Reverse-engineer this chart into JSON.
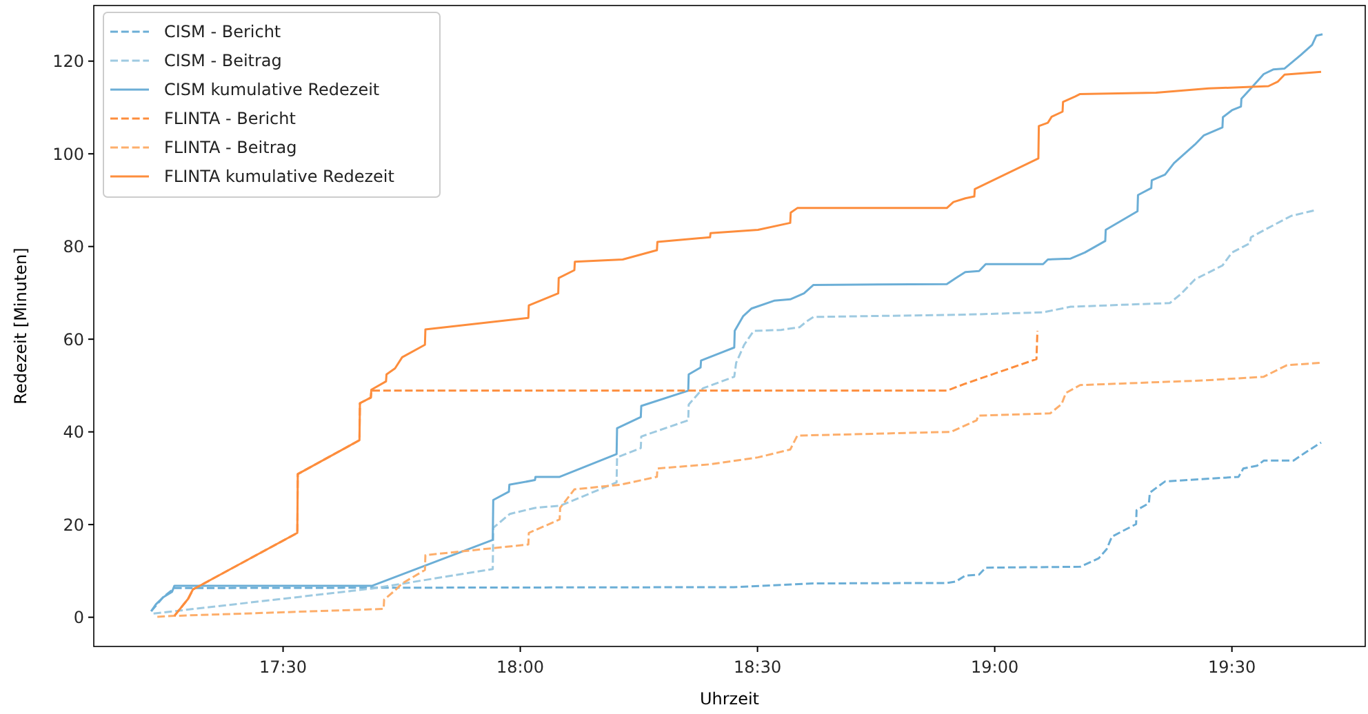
{
  "chart_data": {
    "type": "line",
    "xlabel": "Uhrzeit",
    "ylabel": "Redezeit [Minuten]",
    "xlim": [
      17.101,
      19.781
    ],
    "ylim": [
      -6.3,
      132
    ],
    "xticks": [
      {
        "value": 17.5,
        "label": "17:30"
      },
      {
        "value": 18,
        "label": "18:00"
      },
      {
        "value": 18.5,
        "label": "18:30"
      },
      {
        "value": 19,
        "label": "19:00"
      },
      {
        "value": 19.5,
        "label": "19:30"
      }
    ],
    "yticks": [
      0,
      20,
      40,
      60,
      80,
      100,
      120
    ],
    "grid": false,
    "legend": "top left",
    "marker": "none",
    "series": [
      {
        "name": "CISM - Bericht",
        "color": "#6baed6",
        "line_style": "dashed",
        "x": [
          17.222,
          17.247,
          17.271,
          18.45,
          18.618,
          18.899,
          18.918,
          18.938,
          18.967,
          18.981,
          19.18,
          19.219,
          19.236,
          19.247,
          19.298,
          19.299,
          19.325,
          19.327,
          19.359,
          19.514,
          19.524,
          19.553,
          19.567,
          19.63,
          19.654,
          19.688
        ],
        "values": [
          1.3,
          4.3,
          6.3,
          6.5,
          7.3,
          7.4,
          7.7,
          9.0,
          9.2,
          10.7,
          10.9,
          12.7,
          14.7,
          17.4,
          20.1,
          23.1,
          24.6,
          26.9,
          29.3,
          30.3,
          32.1,
          32.7,
          33.8,
          33.8,
          35.5,
          37.7
        ]
      },
      {
        "name": "CISM - Beitrag",
        "color": "#9ecae1",
        "line_style": "dashed",
        "x": [
          17.227,
          17.688,
          17.942,
          17.943,
          17.978,
          18.031,
          18.085,
          18.203,
          18.204,
          18.254,
          18.255,
          18.354,
          18.355,
          18.385,
          18.451,
          18.455,
          18.472,
          18.492,
          18.55,
          18.589,
          18.603,
          18.618,
          18.938,
          19.102,
          19.16,
          19.369,
          19.393,
          19.422,
          19.48,
          19.5,
          19.538,
          19.54,
          19.582,
          19.625,
          19.674
        ],
        "values": [
          0.8,
          6.2,
          10.4,
          19.3,
          22.3,
          23.6,
          24.1,
          29.1,
          34.5,
          36.5,
          39.0,
          42.5,
          45.9,
          49.4,
          51.9,
          54.9,
          58.8,
          61.8,
          62.0,
          62.6,
          63.8,
          64.8,
          65.3,
          65.8,
          67.0,
          67.8,
          69.8,
          72.9,
          75.9,
          78.7,
          80.7,
          82.0,
          84.3,
          86.6,
          87.8
        ]
      },
      {
        "name": "CISM kumulative Redezeit",
        "color": "#6baed6",
        "line_style": "solid",
        "x": [
          17.222,
          17.232,
          17.247,
          17.266,
          17.271,
          17.688,
          17.942,
          17.943,
          17.976,
          17.977,
          18.031,
          18.032,
          18.083,
          18.203,
          18.204,
          18.254,
          18.255,
          18.354,
          18.355,
          18.38,
          18.381,
          18.451,
          18.452,
          18.47,
          18.487,
          18.535,
          18.569,
          18.598,
          18.618,
          18.899,
          18.918,
          18.938,
          18.967,
          18.981,
          19.102,
          19.112,
          19.16,
          19.19,
          19.233,
          19.234,
          19.301,
          19.302,
          19.33,
          19.331,
          19.359,
          19.378,
          19.422,
          19.441,
          19.48,
          19.481,
          19.5,
          19.519,
          19.52,
          19.538,
          19.567,
          19.587,
          19.611,
          19.645,
          19.669,
          19.678,
          19.691
        ],
        "values": [
          1.3,
          2.8,
          4.3,
          5.5,
          6.8,
          6.8,
          16.7,
          25.3,
          27.1,
          28.6,
          29.6,
          30.3,
          30.3,
          35.2,
          40.8,
          43.2,
          45.6,
          48.9,
          52.4,
          53.9,
          55.4,
          58.2,
          61.8,
          65.0,
          66.6,
          68.3,
          68.6,
          69.9,
          71.7,
          71.9,
          73.2,
          74.5,
          74.7,
          76.2,
          76.2,
          77.2,
          77.4,
          78.7,
          81.2,
          83.6,
          87.6,
          91.1,
          92.6,
          94.3,
          95.5,
          98.0,
          102.0,
          104.0,
          105.7,
          107.9,
          109.4,
          110.2,
          111.9,
          113.9,
          117.2,
          118.2,
          118.4,
          121.3,
          123.5,
          125.5,
          125.8
        ]
      },
      {
        "name": "FLINTA - Bericht",
        "color": "#fd8d3c",
        "line_style": "dashed",
        "x": [
          17.271,
          17.3,
          17.31,
          17.53,
          17.531,
          17.661,
          17.662,
          17.685,
          17.686,
          18.899,
          18.938,
          19.088,
          19.09
        ],
        "values": [
          0.3,
          4.0,
          6.0,
          18.2,
          30.9,
          38.2,
          46.2,
          47.4,
          48.9,
          48.9,
          50.4,
          55.7,
          61.8
        ]
      },
      {
        "name": "FLINTA - Beitrag",
        "color": "#fdae6b",
        "line_style": "dashed",
        "x": [
          17.235,
          17.271,
          17.712,
          17.713,
          17.736,
          17.751,
          17.799,
          17.8,
          18.017,
          18.018,
          18.083,
          18.084,
          18.114,
          18.211,
          18.288,
          18.289,
          18.4,
          18.501,
          18.569,
          18.584,
          18.908,
          18.962,
          18.965,
          19.117,
          19.141,
          19.15,
          19.18,
          19.441,
          19.567,
          19.616,
          19.688
        ],
        "values": [
          0.1,
          0.3,
          1.8,
          3.8,
          5.8,
          7.3,
          10.2,
          13.4,
          15.7,
          18.2,
          21.1,
          23.6,
          27.6,
          28.6,
          30.3,
          32.1,
          33.0,
          34.5,
          36.2,
          39.2,
          40.0,
          42.5,
          43.5,
          44.0,
          46.0,
          48.4,
          50.1,
          51.1,
          51.9,
          54.4,
          54.9
        ]
      },
      {
        "name": "FLINTA kumulative Redezeit",
        "color": "#fd8d3c",
        "line_style": "solid",
        "x": [
          17.271,
          17.3,
          17.31,
          17.53,
          17.531,
          17.661,
          17.662,
          17.685,
          17.686,
          17.717,
          17.718,
          17.736,
          17.751,
          17.799,
          17.8,
          18.017,
          18.018,
          18.08,
          18.081,
          18.114,
          18.115,
          18.216,
          18.288,
          18.289,
          18.4,
          18.401,
          18.501,
          18.569,
          18.57,
          18.584,
          18.899,
          18.913,
          18.938,
          18.957,
          18.958,
          19.092,
          19.093,
          19.112,
          19.12,
          19.143,
          19.144,
          19.17,
          19.18,
          19.34,
          19.451,
          19.577,
          19.597,
          19.611,
          19.688
        ],
        "values": [
          0.3,
          4.0,
          6.0,
          18.2,
          30.9,
          38.2,
          46.2,
          47.4,
          49.1,
          50.9,
          52.4,
          53.7,
          56.1,
          58.8,
          62.1,
          64.6,
          67.3,
          69.9,
          73.2,
          74.9,
          76.7,
          77.2,
          79.2,
          81.0,
          82.0,
          82.9,
          83.6,
          85.1,
          87.3,
          88.3,
          88.3,
          89.6,
          90.4,
          90.8,
          92.4,
          99.0,
          106.0,
          106.7,
          108.0,
          109.1,
          111.2,
          112.4,
          112.9,
          113.2,
          114.1,
          114.6,
          115.6,
          117.1,
          117.7
        ]
      }
    ]
  }
}
